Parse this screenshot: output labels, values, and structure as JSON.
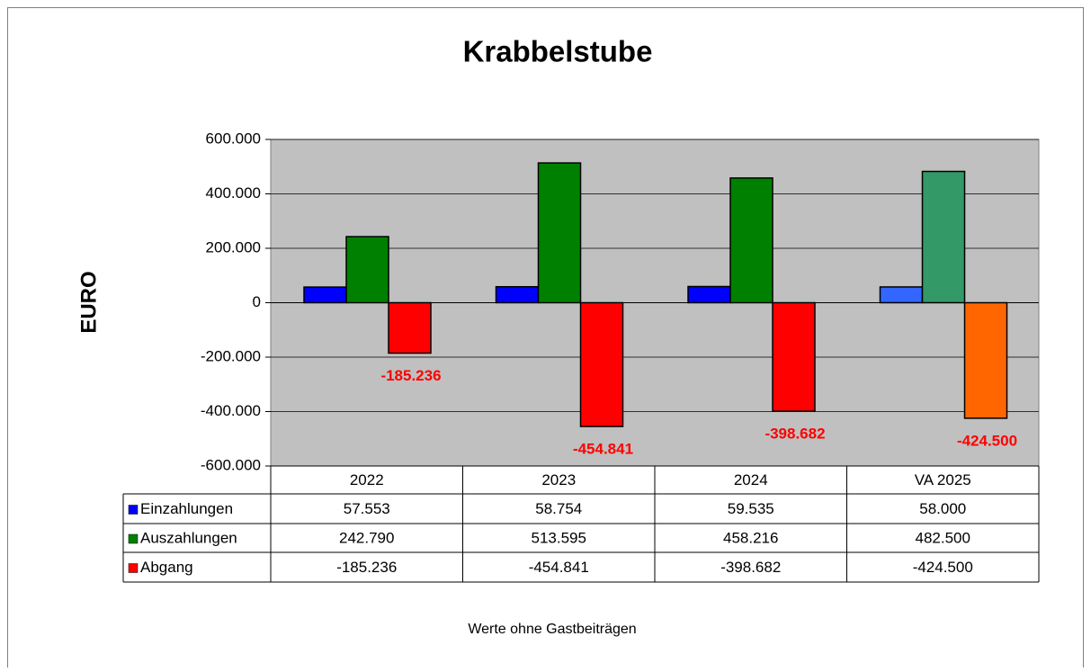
{
  "chart_data": {
    "type": "bar",
    "title": "Krabbelstube",
    "ylabel": "EURO",
    "footnote": "Werte ohne Gastbeiträgen",
    "categories": [
      "2022",
      "2023",
      "2024",
      "VA 2025"
    ],
    "series": [
      {
        "name": "Einzahlungen",
        "color": "#0000ff",
        "colors": [
          "#0000ff",
          "#0000ff",
          "#0000ff",
          "#3366ff"
        ],
        "values": [
          57553,
          58754,
          59535,
          58000
        ],
        "value_labels": [
          "57.553",
          "58.754",
          "59.535",
          "58.000"
        ]
      },
      {
        "name": "Auszahlungen",
        "color": "#008000",
        "colors": [
          "#008000",
          "#008000",
          "#008000",
          "#339966"
        ],
        "values": [
          242790,
          513595,
          458216,
          482500
        ],
        "value_labels": [
          "242.790",
          "513.595",
          "458.216",
          "482.500"
        ]
      },
      {
        "name": "Abgang",
        "color": "#ff0000",
        "colors": [
          "#ff0000",
          "#ff0000",
          "#ff0000",
          "#ff6600"
        ],
        "values": [
          -185236,
          -454841,
          -398682,
          -424500
        ],
        "value_labels": [
          "-185.236",
          "-454.841",
          "-398.682",
          "-424.500"
        ],
        "data_labels": true
      }
    ],
    "ylim": [
      -600000,
      600000
    ],
    "yticks": [
      {
        "value": -600000,
        "label": "-600.000"
      },
      {
        "value": -400000,
        "label": "-400.000"
      },
      {
        "value": -200000,
        "label": "-200.000"
      },
      0,
      {
        "value": 200000,
        "label": "200.000"
      },
      {
        "value": 400000,
        "label": "400.000"
      },
      {
        "value": 600000,
        "label": "600.000"
      }
    ],
    "grid": true,
    "data_table": true
  }
}
